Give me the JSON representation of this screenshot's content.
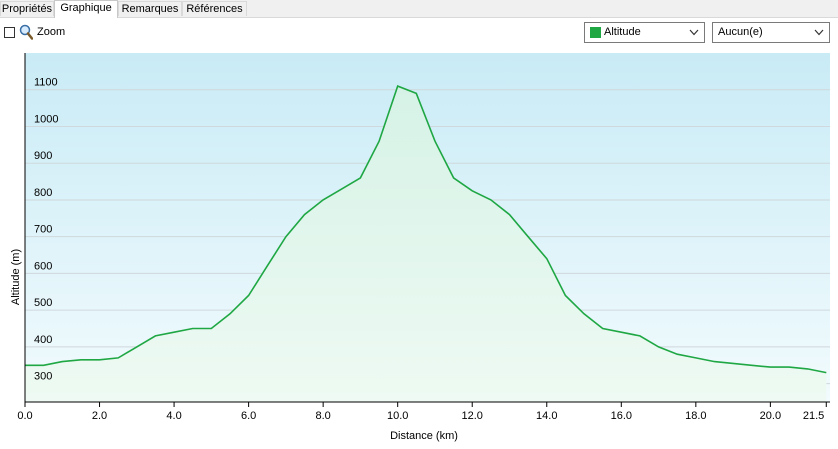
{
  "tabs": [
    {
      "label": "Propriétés",
      "active": false
    },
    {
      "label": "Graphique",
      "active": true
    },
    {
      "label": "Remarques",
      "active": false
    },
    {
      "label": "Références",
      "active": false
    }
  ],
  "toolbar": {
    "zoom_label": "Zoom",
    "zoom_checked": false,
    "series_select": {
      "value": "Altitude",
      "color": "#1fa744"
    },
    "secondary_select": {
      "value": "Aucun(e)"
    }
  },
  "chart_data": {
    "type": "area",
    "xlabel": "Distance  (km)",
    "ylabel": "Altitude (m)",
    "xlim": [
      0,
      21.6
    ],
    "ylim": [
      250,
      1200
    ],
    "x_ticks": [
      "0.0",
      "2.0",
      "4.0",
      "6.0",
      "8.0",
      "10.0",
      "12.0",
      "14.0",
      "16.0",
      "18.0",
      "20.0",
      "21.5"
    ],
    "y_ticks": [
      "300",
      "400",
      "500",
      "600",
      "700",
      "800",
      "900",
      "1000",
      "1100"
    ],
    "grid": true,
    "line_color": "#1fa744",
    "series": [
      {
        "x": [
          0.0,
          0.5,
          1.0,
          1.5,
          2.0,
          2.5,
          3.0,
          3.5,
          4.0,
          4.5,
          5.0,
          5.5,
          6.0,
          6.5,
          7.0,
          7.5,
          8.0,
          8.5,
          9.0,
          9.5,
          10.0,
          10.5,
          11.0,
          11.5,
          12.0,
          12.5,
          13.0,
          13.5,
          14.0,
          14.5,
          15.0,
          15.5,
          16.0,
          16.5,
          17.0,
          17.5,
          18.0,
          18.5,
          19.0,
          19.5,
          20.0,
          20.5,
          21.0,
          21.5
        ],
        "values": [
          350,
          350,
          360,
          365,
          365,
          370,
          400,
          430,
          440,
          450,
          450,
          490,
          540,
          620,
          700,
          760,
          800,
          830,
          860,
          960,
          1110,
          1090,
          960,
          860,
          825,
          800,
          760,
          700,
          640,
          540,
          490,
          450,
          440,
          430,
          400,
          380,
          370,
          360,
          355,
          350,
          345,
          345,
          340,
          330
        ]
      }
    ]
  }
}
